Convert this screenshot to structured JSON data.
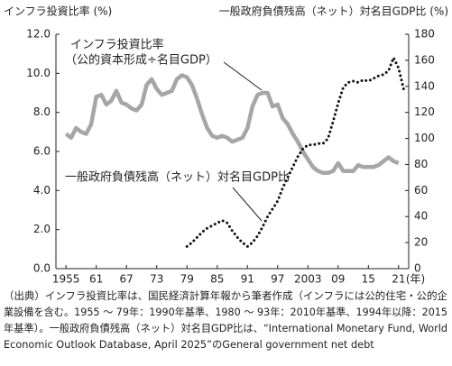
{
  "chart_data": {
    "type": "line",
    "ylabel": "インフラ投資比率 (%)",
    "y2label": "一般政府負債残高（ネット）対名目GDP比 (%)",
    "xlabel": "(年)",
    "annotations": [
      "インフラ投資比率",
      "（公的資本形成÷名目GDP）",
      "一般政府負債残高（ネット）対名目GDP比"
    ],
    "footnote": [
      "（出典）インフラ投資比率は、国民経済計算年報から筆者作成（インフラには公的住宅・公的企",
      "業設備を含む。1955 ～ 79年：1990年基準、1980 ～ 93年：2010年基準、1994年以降：2015",
      "年基準）。一般政府負債残高（ネット）対名目GDP比は、“International Monetary Fund, World",
      "Economic Outlook Database, April 2025”のGeneral government net debt"
    ],
    "x": [
      1955,
      1956,
      1957,
      1958,
      1959,
      1960,
      1961,
      1962,
      1963,
      1964,
      1965,
      1966,
      1967,
      1968,
      1969,
      1970,
      1971,
      1972,
      1973,
      1974,
      1975,
      1976,
      1977,
      1978,
      1979,
      1980,
      1981,
      1982,
      1983,
      1984,
      1985,
      1986,
      1987,
      1988,
      1989,
      1990,
      1991,
      1992,
      1993,
      1994,
      1995,
      1996,
      1997,
      1998,
      1999,
      2000,
      2001,
      2002,
      2003,
      2004,
      2005,
      2006,
      2007,
      2008,
      2009,
      2010,
      2011,
      2012,
      2013,
      2014,
      2015,
      2016,
      2017,
      2018,
      2019,
      2020,
      2021,
      2022
    ],
    "xlim": [
      1953,
      2023
    ],
    "xticks": [
      {
        "value": 1955,
        "label": "1955"
      },
      {
        "value": 1961,
        "label": "61"
      },
      {
        "value": 1967,
        "label": "67"
      },
      {
        "value": 1973,
        "label": "73"
      },
      {
        "value": 1979,
        "label": "79"
      },
      {
        "value": 1985,
        "label": "85"
      },
      {
        "value": 1991,
        "label": "91"
      },
      {
        "value": 1997,
        "label": "97"
      },
      {
        "value": 2003,
        "label": "2003"
      },
      {
        "value": 2009,
        "label": "09"
      },
      {
        "value": 2015,
        "label": "15"
      },
      {
        "value": 2021,
        "label": "21"
      }
    ],
    "ylim": [
      0,
      12
    ],
    "yticks": [
      {
        "value": 0,
        "label": "0.0"
      },
      {
        "value": 2,
        "label": "2.0"
      },
      {
        "value": 4,
        "label": "4.0"
      },
      {
        "value": 6,
        "label": "6.0"
      },
      {
        "value": 8,
        "label": "8.0"
      },
      {
        "value": 10,
        "label": "10.0"
      },
      {
        "value": 12,
        "label": "12.0"
      }
    ],
    "y2lim": [
      0,
      180
    ],
    "y2ticks": [
      0,
      20,
      40,
      60,
      80,
      100,
      120,
      140,
      160,
      180
    ],
    "series": [
      {
        "name": "インフラ投資比率",
        "color": "#a6a6a6",
        "style": "solid",
        "values": [
          6.9,
          6.7,
          7.2,
          7.0,
          6.9,
          7.4,
          8.8,
          8.9,
          8.4,
          8.6,
          9.1,
          8.5,
          8.4,
          8.2,
          8.1,
          8.4,
          9.4,
          9.7,
          9.2,
          8.9,
          9.0,
          9.1,
          9.7,
          9.9,
          9.8,
          9.4,
          8.7,
          7.9,
          7.2,
          6.8,
          6.7,
          6.8,
          6.7,
          6.5,
          6.6,
          6.7,
          7.2,
          8.3,
          8.9,
          9.0,
          9.0,
          8.3,
          8.4,
          7.7,
          7.4,
          6.9,
          6.5,
          6.0,
          5.6,
          5.2,
          5.0,
          4.9,
          4.9,
          5.0,
          5.4,
          5.0,
          5.0,
          5.0,
          5.3,
          5.2,
          5.2,
          5.2,
          5.3,
          5.5,
          5.7,
          5.5,
          5.4,
          null
        ]
      },
      {
        "name": "一般政府負債残高（ネット）対名目GDP比",
        "color": "#111111",
        "style": "dotted",
        "axis": "y2",
        "values": [
          null,
          null,
          null,
          null,
          null,
          null,
          null,
          null,
          null,
          null,
          null,
          null,
          null,
          null,
          null,
          null,
          null,
          null,
          null,
          null,
          null,
          null,
          null,
          null,
          17,
          20,
          24,
          28,
          31,
          33,
          35,
          37,
          35,
          29,
          24,
          20,
          17,
          20,
          25,
          32,
          40,
          46,
          52,
          62,
          70,
          78,
          86,
          92,
          95,
          95,
          96,
          96,
          100,
          113,
          127,
          139,
          143,
          144,
          143,
          145,
          144,
          146,
          148,
          149,
          152,
          162,
          154,
          138
        ]
      }
    ]
  }
}
